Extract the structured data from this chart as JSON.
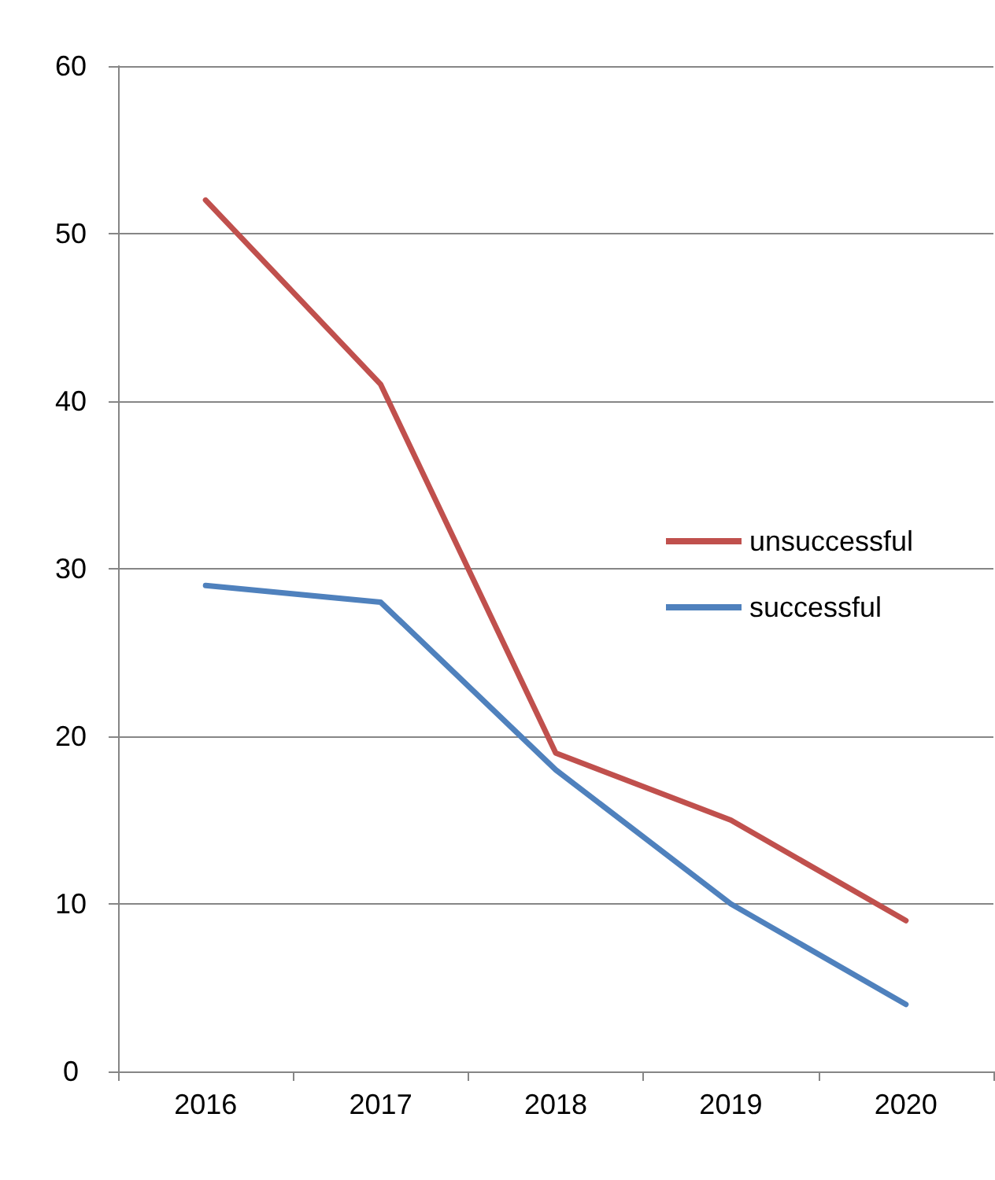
{
  "chart_data": {
    "type": "line",
    "categories": [
      "2016",
      "2017",
      "2018",
      "2019",
      "2020"
    ],
    "series": [
      {
        "name": "unsuccessful",
        "color": "#c0504d",
        "values": [
          52,
          41,
          19,
          15,
          9
        ]
      },
      {
        "name": "successful",
        "color": "#4f81bd",
        "values": [
          29,
          28,
          18,
          10,
          4
        ]
      }
    ],
    "ylim": [
      0,
      60
    ],
    "yticks": [
      0,
      10,
      20,
      30,
      40,
      50,
      60
    ],
    "grid": "y",
    "legend": "right",
    "marker": "none",
    "line_style": "solid"
  }
}
